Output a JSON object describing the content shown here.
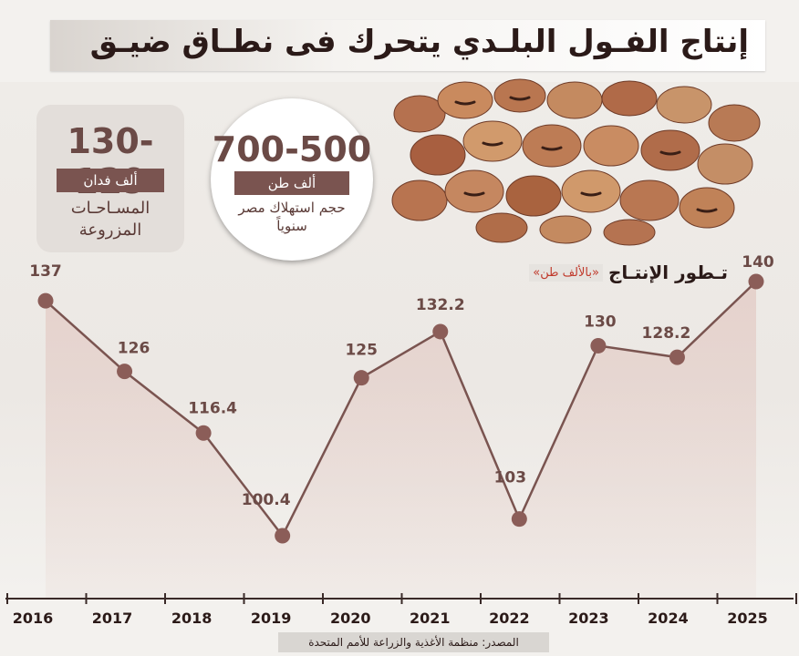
{
  "title": "إنتاج الفـول البلـدي يتحرك فى نطـاق ضيـق",
  "area_card": {
    "value": "130-129",
    "unit": "ألف فدان",
    "label": "المسـاحـات المزروعة"
  },
  "consumption_card": {
    "value": "700-500",
    "unit": "ألف طن",
    "label": "حجم استهلاك مصر سنوياً"
  },
  "chart_subtitle": "تـطور الإنتـاج",
  "chart_unit": "«بالألف طن»",
  "source": "المصدر: منظمة الأغذية والزراعة للأمم المتحدة",
  "colors": {
    "line": "#7a5450",
    "marker": "#8b5d58",
    "fill": "#e2c9c3",
    "text": "#6b4a46"
  },
  "chart_data": {
    "type": "area",
    "x": [
      "2016",
      "2017",
      "2018",
      "2019",
      "2020",
      "2021",
      "2022",
      "2023",
      "2024",
      "2025"
    ],
    "values": [
      137,
      126,
      116.4,
      100.4,
      125,
      132.2,
      103,
      130,
      128.2,
      140
    ],
    "value_labels": [
      "137",
      "126",
      "116.4",
      "100.4",
      "125",
      "132.2",
      "103",
      "130",
      "128.2",
      "140"
    ]
  }
}
